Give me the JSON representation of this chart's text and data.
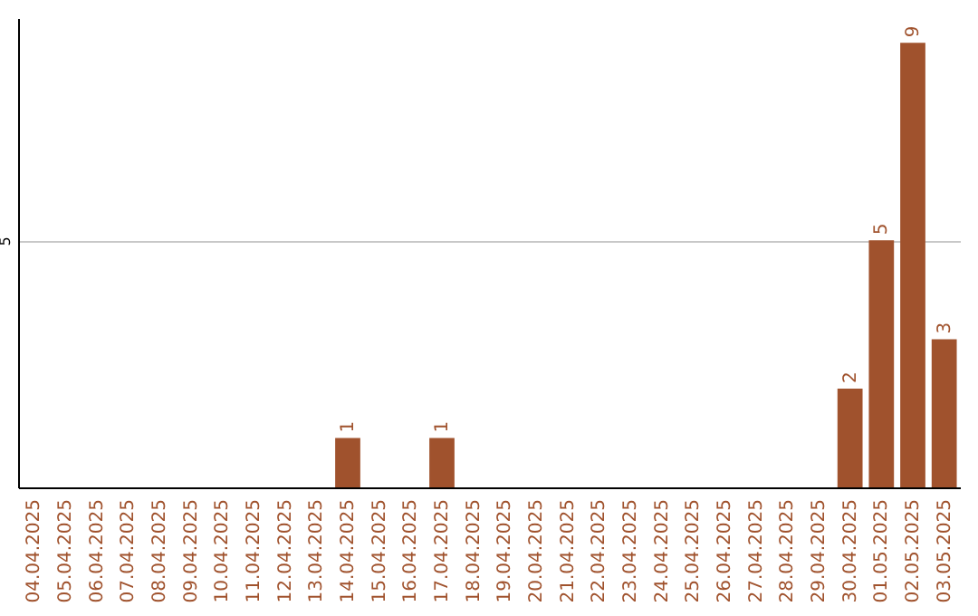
{
  "chart_data": {
    "type": "bar",
    "categories": [
      "04.04.2025",
      "05.04.2025",
      "06.04.2025",
      "07.04.2025",
      "08.04.2025",
      "09.04.2025",
      "10.04.2025",
      "11.04.2025",
      "12.04.2025",
      "13.04.2025",
      "14.04.2025",
      "15.04.2025",
      "16.04.2025",
      "17.04.2025",
      "18.04.2025",
      "19.04.2025",
      "20.04.2025",
      "21.04.2025",
      "22.04.2025",
      "23.04.2025",
      "24.04.2025",
      "25.04.2025",
      "26.04.2025",
      "27.04.2025",
      "28.04.2025",
      "29.04.2025",
      "30.04.2025",
      "01.05.2025",
      "02.05.2025",
      "03.05.2025"
    ],
    "values": [
      0,
      0,
      0,
      0,
      0,
      0,
      0,
      0,
      0,
      0,
      1,
      0,
      0,
      1,
      0,
      0,
      0,
      0,
      0,
      0,
      0,
      0,
      0,
      0,
      0,
      0,
      2,
      5,
      9,
      3
    ],
    "value_labels": [
      null,
      null,
      null,
      null,
      null,
      null,
      null,
      null,
      null,
      null,
      "1",
      null,
      null,
      "1",
      null,
      null,
      null,
      null,
      null,
      null,
      null,
      null,
      null,
      null,
      null,
      null,
      "2",
      "5",
      "9",
      "3"
    ],
    "color": "#a0522d",
    "ylim": [
      0,
      9.5
    ],
    "yticks": [
      5
    ],
    "grid": "y"
  }
}
